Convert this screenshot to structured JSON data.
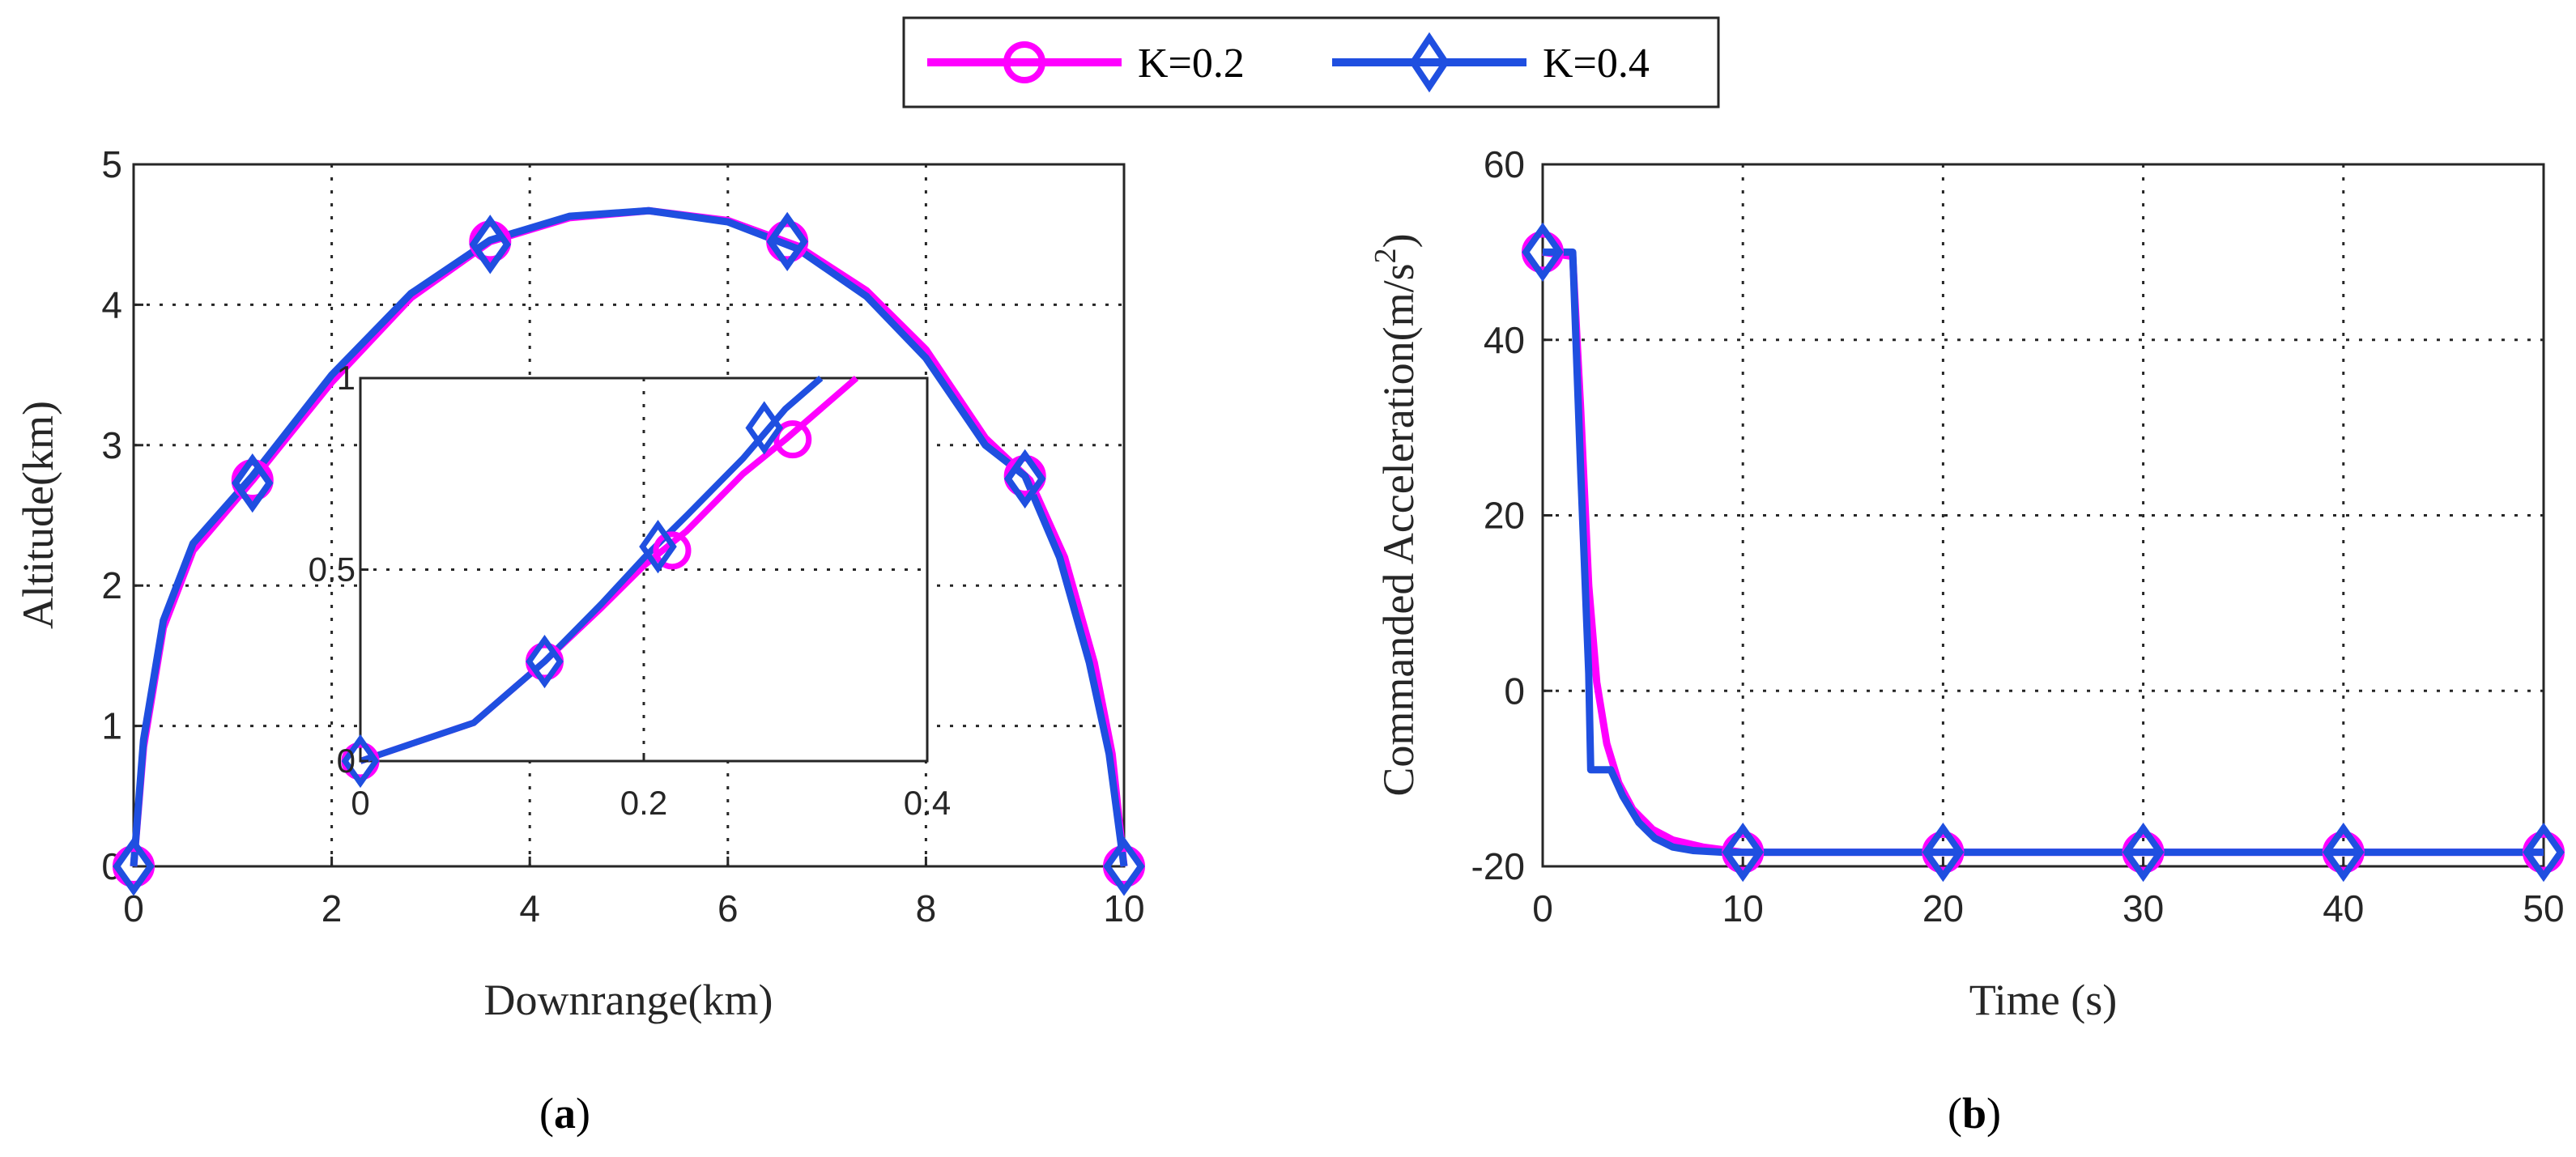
{
  "colors": {
    "k02": "#ff00ff",
    "k04": "#1f4fe0",
    "axis": "#262626"
  },
  "legend": [
    {
      "label": "K=0.2",
      "marker": "circle",
      "color": "#ff00ff"
    },
    {
      "label": "K=0.4",
      "marker": "diamond",
      "color": "#1f4fe0"
    }
  ],
  "chart_data": [
    {
      "type": "line",
      "panel": "(a)",
      "panel_letter": "a",
      "xlabel": "Downrange(km)",
      "ylabel": "Altitude(km)",
      "xlim": [
        0,
        10
      ],
      "ylim": [
        0,
        5
      ],
      "xticks": [
        0,
        2,
        4,
        6,
        8,
        10
      ],
      "yticks": [
        0,
        1,
        2,
        3,
        4,
        5
      ],
      "grid": true,
      "series": [
        {
          "name": "K=0.2",
          "marker": "circle",
          "x": [
            0,
            0.1,
            0.3,
            0.6,
            1.2,
            2.0,
            2.8,
            3.6,
            4.4,
            5.2,
            6.0,
            6.7,
            7.4,
            8.0,
            8.6,
            9.05,
            9.4,
            9.7,
            9.88,
            10.0
          ],
          "y": [
            0,
            0.85,
            1.7,
            2.25,
            2.75,
            3.45,
            4.05,
            4.45,
            4.62,
            4.67,
            4.6,
            4.42,
            4.1,
            3.68,
            3.05,
            2.75,
            2.2,
            1.45,
            0.8,
            0
          ],
          "marker_x": [
            0,
            1.2,
            3.6,
            6.6,
            9.0,
            10.0
          ],
          "marker_y": [
            0,
            2.75,
            4.45,
            4.45,
            2.78,
            0
          ]
        },
        {
          "name": "K=0.4",
          "marker": "diamond",
          "x": [
            0,
            0.1,
            0.3,
            0.6,
            1.2,
            2.0,
            2.8,
            3.6,
            4.4,
            5.2,
            6.0,
            6.7,
            7.4,
            8.0,
            8.6,
            9.0,
            9.35,
            9.65,
            9.85,
            10.0
          ],
          "y": [
            0,
            0.9,
            1.75,
            2.3,
            2.78,
            3.5,
            4.08,
            4.46,
            4.63,
            4.67,
            4.59,
            4.4,
            4.06,
            3.62,
            3.0,
            2.78,
            2.2,
            1.45,
            0.8,
            0
          ],
          "marker_x": [
            0,
            1.2,
            3.6,
            6.6,
            9.0,
            10.0
          ],
          "marker_y": [
            0,
            2.73,
            4.43,
            4.45,
            2.76,
            0
          ]
        }
      ],
      "inset": {
        "xlim": [
          0,
          0.4
        ],
        "ylim": [
          0,
          1
        ],
        "xticks": [
          0,
          0.2,
          0.4
        ],
        "yticks": [
          0,
          0.5,
          1
        ],
        "series": [
          {
            "name": "K=0.2",
            "x": [
              0,
              0.04,
              0.08,
              0.13,
              0.17,
              0.2,
              0.23,
              0.27,
              0.3,
              0.35
            ],
            "y": [
              0,
              0.05,
              0.1,
              0.26,
              0.4,
              0.51,
              0.6,
              0.75,
              0.84,
              1.0
            ],
            "marker_x": [
              0,
              0.13,
              0.22,
              0.305
            ],
            "marker_y": [
              0,
              0.26,
              0.55,
              0.84
            ]
          },
          {
            "name": "K=0.4",
            "x": [
              0,
              0.04,
              0.08,
              0.13,
              0.17,
              0.2,
              0.23,
              0.27,
              0.3,
              0.325
            ],
            "y": [
              0,
              0.05,
              0.1,
              0.26,
              0.41,
              0.53,
              0.64,
              0.79,
              0.92,
              1.0
            ],
            "marker_x": [
              0,
              0.13,
              0.21,
              0.285
            ],
            "marker_y": [
              0,
              0.26,
              0.56,
              0.87
            ]
          }
        ]
      }
    },
    {
      "type": "line",
      "panel": "(b)",
      "panel_letter": "b",
      "xlabel": "Time (s)",
      "ylabel": "Commanded Acceleration(m/s^2)",
      "ylabel_main": "Commanded Acceleration(m/s",
      "ylabel_sup": "2",
      "ylabel_end": ")",
      "xlim": [
        0,
        50
      ],
      "ylim": [
        -20,
        60
      ],
      "xticks": [
        0,
        10,
        20,
        30,
        40,
        50
      ],
      "yticks": [
        -20,
        0,
        20,
        40,
        60
      ],
      "grid": true,
      "series": [
        {
          "name": "K=0.2",
          "marker": "circle",
          "x": [
            0,
            1.5,
            1.9,
            2.3,
            2.7,
            3.2,
            3.8,
            4.5,
            5.5,
            6.5,
            8,
            10,
            50
          ],
          "y": [
            50,
            49.5,
            32,
            12,
            1,
            -6,
            -10.5,
            -13.5,
            -15.8,
            -17,
            -17.8,
            -18.4,
            -18.4
          ],
          "marker_x": [
            0,
            10,
            20,
            30,
            40,
            50
          ],
          "marker_y": [
            50,
            -18.4,
            -18.4,
            -18.4,
            -18.4,
            -18.4
          ]
        },
        {
          "name": "K=0.4",
          "marker": "diamond",
          "x": [
            0,
            1.5,
            1.9,
            2.3,
            2.4,
            3.4,
            4.0,
            4.8,
            5.6,
            6.5,
            7.5,
            9,
            10,
            50
          ],
          "y": [
            50,
            50,
            25,
            2,
            -9,
            -9,
            -12,
            -15,
            -16.8,
            -17.8,
            -18.2,
            -18.4,
            -18.4,
            -18.4
          ],
          "marker_x": [
            0,
            10,
            20,
            30,
            40,
            50
          ],
          "marker_y": [
            50,
            -18.4,
            -18.4,
            -18.4,
            -18.4,
            -18.4
          ]
        }
      ]
    }
  ]
}
